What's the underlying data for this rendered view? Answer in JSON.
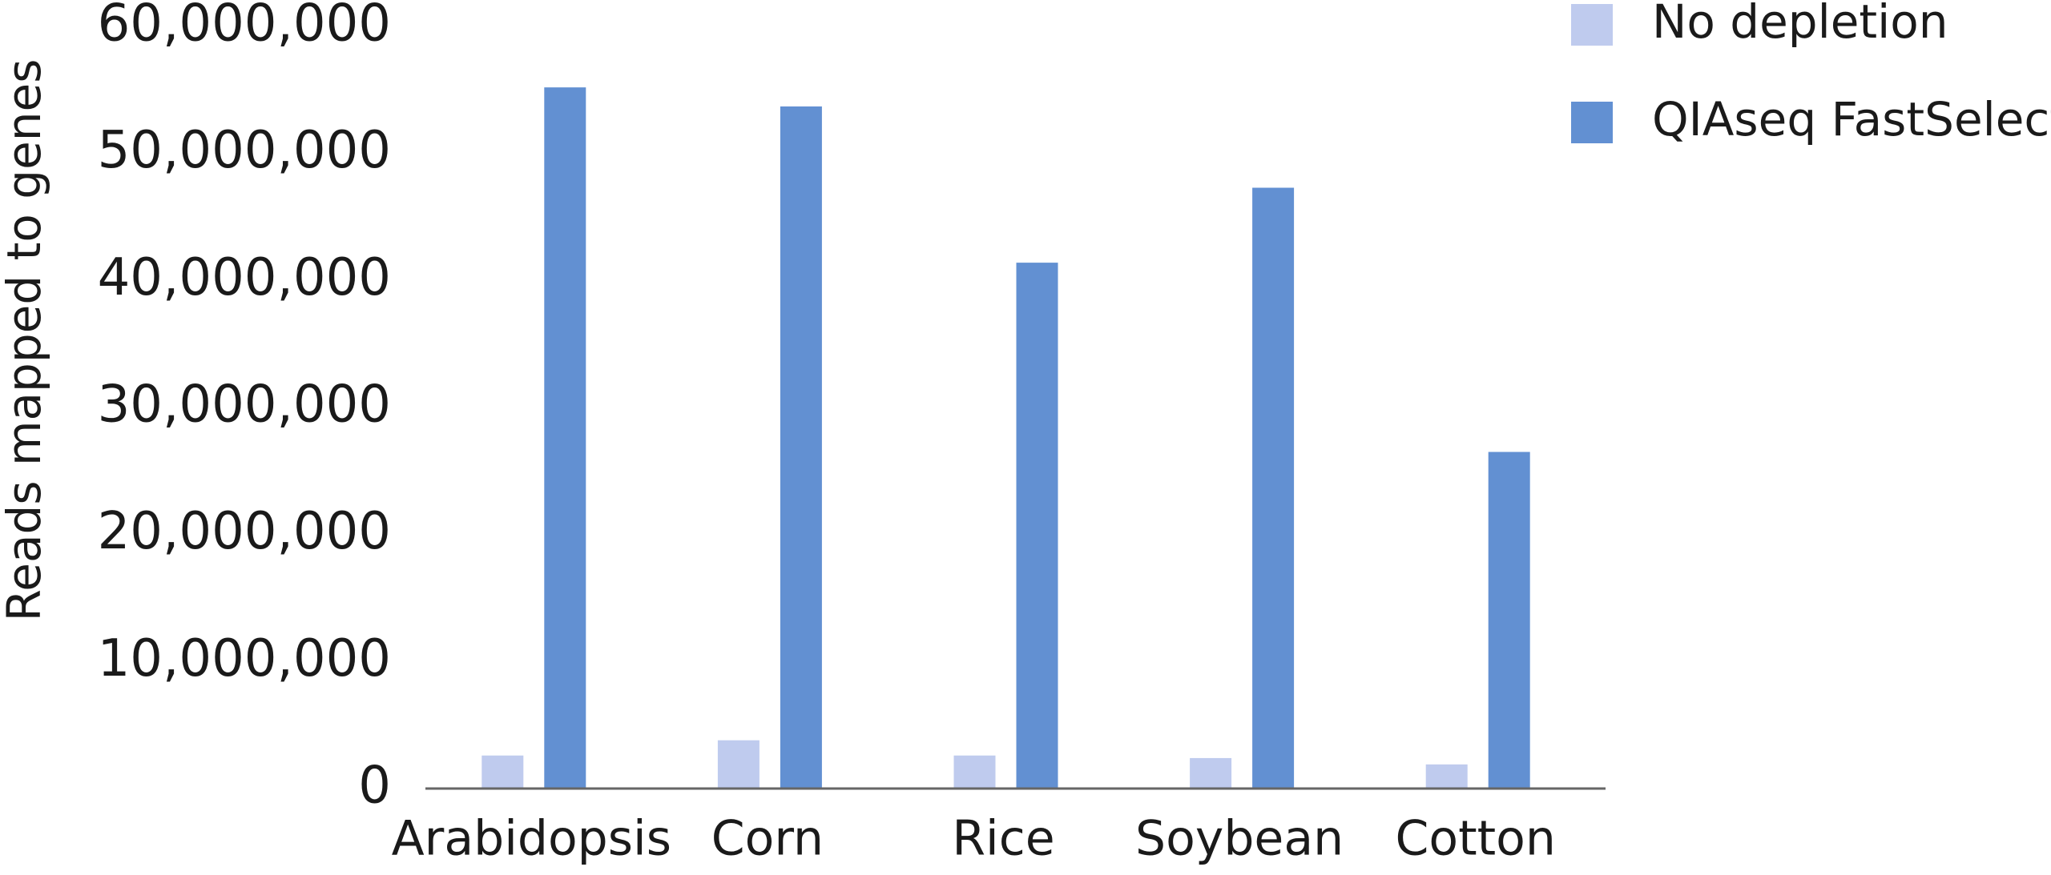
{
  "chart_data": {
    "type": "bar",
    "y_label": "Reads mapped to genes",
    "categories": [
      "Arabidopsis",
      "Corn",
      "Rice",
      "Soybean",
      "Cotton"
    ],
    "series": [
      {
        "name": "No depletion",
        "color": "#bfcbee",
        "values": [
          2600000,
          3800000,
          2600000,
          2400000,
          1900000
        ]
      },
      {
        "name": "QIAseq FastSelect",
        "color": "#6290d2",
        "values": [
          55200000,
          53700000,
          41400000,
          47300000,
          26500000
        ]
      }
    ],
    "ylim": [
      0,
      60000000
    ],
    "yticks": [
      0,
      {
        "value": 10000000,
        "label": "10,000,000"
      },
      {
        "value": 20000000,
        "label": "20,000,000"
      },
      {
        "value": 30000000,
        "label": "30,000,000"
      },
      {
        "value": 40000000,
        "label": "40,000,000"
      },
      {
        "value": 50000000,
        "label": "50,000,000"
      },
      {
        "value": 60000000,
        "label": "60,000,000"
      }
    ],
    "grid": false,
    "legend": "top-right"
  }
}
